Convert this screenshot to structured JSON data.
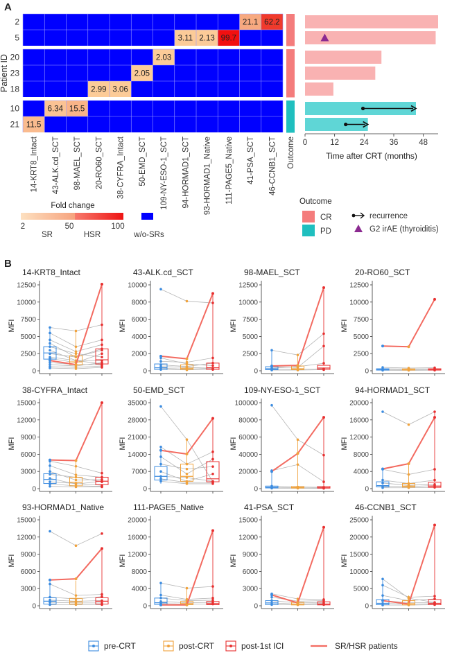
{
  "panel_labels": {
    "a": "A",
    "b": "B"
  },
  "heatmap": {
    "y_label": "Patient ID",
    "patients": [
      "2",
      "5",
      "20",
      "23",
      "18",
      "10",
      "21"
    ],
    "antigens": [
      "14-KRT8_Intact",
      "43-ALK.cd_SCT",
      "98-MAEL_SCT",
      "20-RO60_SCT",
      "38-CYFRA_Intact",
      "50-EMD_SCT",
      "109-NY-ESO-1_SCT",
      "94-HORMAD1_SCT",
      "93-HORMAD1_Native",
      "111-PAGE5_Native",
      "41-PSA_SCT",
      "46-CCNB1_SCT"
    ],
    "outcome_label": "Outcome",
    "cells": [
      {
        "patient": "2",
        "antigen": "41-PSA_SCT",
        "value": "21.1",
        "color": "#f7a980"
      },
      {
        "patient": "2",
        "antigen": "46-CCNB1_SCT",
        "value": "62.2",
        "color": "#f03a2c"
      },
      {
        "patient": "5",
        "antigen": "94-HORMAD1_SCT",
        "value": "3.11",
        "color": "#fccb98"
      },
      {
        "patient": "5",
        "antigen": "93-HORMAD1_Native",
        "value": "2.13",
        "color": "#fccb98"
      },
      {
        "patient": "5",
        "antigen": "111-PAGE5_Native",
        "value": "99.7",
        "color": "#f21010"
      },
      {
        "patient": "20",
        "antigen": "109-NY-ESO-1_SCT",
        "value": "2.03",
        "color": "#fccb98"
      },
      {
        "patient": "23",
        "antigen": "50-EMD_SCT",
        "value": "2.05",
        "color": "#fccb98"
      },
      {
        "patient": "18",
        "antigen": "20-RO60_SCT",
        "value": "2.99",
        "color": "#fccb98"
      },
      {
        "patient": "18",
        "antigen": "38-CYFRA_Intact",
        "value": "3.06",
        "color": "#fccb98"
      },
      {
        "patient": "10",
        "antigen": "43-ALK.cd_SCT",
        "value": "6.34",
        "color": "#fbc394"
      },
      {
        "patient": "10",
        "antigen": "98-MAEL_SCT",
        "value": "15.5",
        "color": "#f9b488"
      },
      {
        "patient": "21",
        "antigen": "14-KRT8_Intact",
        "value": "11.5",
        "color": "#fabb8e"
      }
    ],
    "outcomes": {
      "2": "CR",
      "5": "CR",
      "20": "CR",
      "23": "CR",
      "18": "CR",
      "10": "PD",
      "21": "PD"
    },
    "bars": {
      "x_label": "Time after CRT (months)",
      "ticks": [
        0,
        12,
        24,
        36,
        48
      ],
      "xlim": [
        0,
        54
      ],
      "months": {
        "2": 54,
        "5": 53,
        "20": 31,
        "23": 28.5,
        "18": 11.5,
        "10": 45,
        "21": 25.5
      },
      "recurrence": [
        {
          "patient": "10",
          "from": 23.5,
          "to": 45
        },
        {
          "patient": "21",
          "from": 16.5,
          "to": 25.5
        }
      ],
      "irae": [
        {
          "patient": "5",
          "month": 8
        }
      ]
    },
    "legend": {
      "fold_title": "Fold change",
      "fold_labels": [
        "2",
        "50",
        "100"
      ],
      "categories": [
        "SR",
        "HSR",
        "w/o-SRs"
      ],
      "outcome_title": "Outcome",
      "outcome_items": [
        "CR",
        "PD"
      ],
      "event_items": [
        "recurrence",
        "G2 irAE (thyroiditis)"
      ]
    }
  },
  "colors": {
    "blue": "#0000ff",
    "cr": "#f47c7c",
    "cr_bar": "#f9b2b2",
    "pd": "#1fbfbf",
    "pd_bar": "#5fd6d6",
    "pre": "#3c8ce0",
    "post": "#f0a23c",
    "ici": "#e83030",
    "highlight": "#f36a60",
    "gray": "#b5b5b5",
    "irae": "#8b2a90"
  },
  "chart_data": [
    {
      "type": "box+line",
      "title": "14-KRT8_Intact",
      "ylabel": "MFI",
      "ylim": [
        0,
        12500
      ],
      "yticks": [
        0,
        2500,
        5000,
        7500,
        10000,
        12500
      ],
      "timepoints": [
        "pre-CRT",
        "post-CRT",
        "post-1st ICI"
      ],
      "boxes": [
        [
          800,
          1700,
          2600,
          3500,
          6300
        ],
        [
          400,
          900,
          1300,
          2200,
          5800
        ],
        [
          500,
          1000,
          1600,
          3200,
          12600
        ]
      ],
      "highlight_series": [
        [
          1500,
          900,
          12600
        ]
      ],
      "gray_series": [
        [
          6300,
          5800,
          6700
        ],
        [
          5500,
          3500,
          4500
        ],
        [
          4500,
          2800,
          3800
        ],
        [
          4000,
          2000,
          3000
        ],
        [
          3500,
          2500,
          2000
        ],
        [
          3000,
          1500,
          1000
        ],
        [
          2500,
          2000,
          3200
        ],
        [
          2000,
          1500,
          1500
        ],
        [
          1800,
          1200,
          2500
        ],
        [
          1200,
          900,
          900
        ],
        [
          900,
          700,
          1200
        ],
        [
          600,
          500,
          700
        ],
        [
          400,
          300,
          500
        ]
      ]
    },
    {
      "type": "box+line",
      "title": "43-ALK.cd_SCT",
      "ylabel": "MFI",
      "ylim": [
        0,
        10000
      ],
      "yticks": [
        0,
        2000,
        4000,
        6000,
        8000,
        10000
      ],
      "timepoints": [
        "pre-CRT",
        "post-CRT",
        "post-1st ICI"
      ],
      "boxes": [
        [
          50,
          150,
          350,
          800,
          1700
        ],
        [
          50,
          150,
          300,
          700,
          1400
        ],
        [
          50,
          150,
          350,
          900,
          9000
        ]
      ],
      "highlight_series": [
        [
          1700,
          1400,
          9000
        ]
      ],
      "gray_series": [
        [
          9500,
          8100,
          7900
        ],
        [
          1500,
          800,
          600
        ],
        [
          1100,
          1000,
          1500
        ],
        [
          700,
          500,
          900
        ],
        [
          500,
          400,
          300
        ],
        [
          300,
          200,
          300
        ],
        [
          150,
          100,
          150
        ]
      ]
    },
    {
      "type": "box+line",
      "title": "98-MAEL_SCT",
      "ylabel": "MFI",
      "ylim": [
        0,
        12500
      ],
      "yticks": [
        0,
        2500,
        5000,
        7500,
        10000,
        12500
      ],
      "timepoints": [
        "pre-CRT",
        "post-CRT",
        "post-1st ICI"
      ],
      "boxes": [
        [
          50,
          150,
          300,
          600,
          3000
        ],
        [
          50,
          150,
          300,
          700,
          2400
        ],
        [
          50,
          200,
          400,
          800,
          12100
        ]
      ],
      "highlight_series": [
        [
          700,
          800,
          12100
        ]
      ],
      "gray_series": [
        [
          3000,
          2300,
          5400
        ],
        [
          600,
          500,
          3600
        ],
        [
          400,
          600,
          1100
        ],
        [
          250,
          200,
          300
        ],
        [
          100,
          100,
          150
        ]
      ]
    },
    {
      "type": "box+line",
      "title": "20-RO60_SCT",
      "ylabel": "MFI",
      "ylim": [
        0,
        12500
      ],
      "yticks": [
        0,
        2500,
        5000,
        7500,
        10000,
        12500
      ],
      "timepoints": [
        "pre-CRT",
        "post-CRT",
        "post-1st ICI"
      ],
      "boxes": [
        [
          30,
          100,
          180,
          300,
          500
        ],
        [
          30,
          100,
          160,
          280,
          450
        ],
        [
          30,
          100,
          170,
          300,
          500
        ]
      ],
      "highlight_series": [
        [
          3600,
          3500,
          10400
        ]
      ],
      "gray_series": [
        [
          500,
          400,
          450
        ],
        [
          300,
          280,
          300
        ],
        [
          150,
          150,
          160
        ],
        [
          80,
          70,
          90
        ]
      ]
    },
    {
      "type": "box+line",
      "title": "38-CYFRA_Intact",
      "ylabel": "MFI",
      "ylim": [
        0,
        15000
      ],
      "yticks": [
        0,
        3000,
        6000,
        9000,
        12000,
        15000
      ],
      "timepoints": [
        "pre-CRT",
        "post-CRT",
        "post-1st ICI"
      ],
      "boxes": [
        [
          200,
          900,
          1600,
          2600,
          5000
        ],
        [
          150,
          500,
          1100,
          2000,
          4800
        ],
        [
          200,
          700,
          1300,
          2000,
          15000
        ]
      ],
      "highlight_series": [
        [
          5000,
          4900,
          15000
        ]
      ],
      "gray_series": [
        [
          4800,
          3900,
          2700
        ],
        [
          4000,
          2400,
          2000
        ],
        [
          3000,
          1500,
          1600
        ],
        [
          2500,
          2000,
          1200
        ],
        [
          1800,
          800,
          1300
        ],
        [
          1200,
          900,
          600
        ],
        [
          800,
          500,
          400
        ],
        [
          400,
          300,
          300
        ]
      ]
    },
    {
      "type": "box+line",
      "title": "50-EMD_SCT",
      "ylabel": "MFI",
      "ylim": [
        0,
        35000
      ],
      "yticks": [
        0,
        7000,
        14000,
        21000,
        28000,
        35000
      ],
      "timepoints": [
        "pre-CRT",
        "post-CRT",
        "post-1st ICI"
      ],
      "boxes": [
        [
          2000,
          3500,
          5000,
          9000,
          17000
        ],
        [
          2000,
          3000,
          5000,
          10000,
          20000
        ],
        [
          2000,
          2800,
          4000,
          11000,
          29000
        ]
      ],
      "highlight_series": [
        [
          15600,
          14100,
          28600
        ]
      ],
      "gray_series": [
        [
          33500,
          20000,
          2800
        ],
        [
          17000,
          10000,
          15000
        ],
        [
          13000,
          6000,
          12000
        ],
        [
          10000,
          8000,
          9000
        ],
        [
          7000,
          3000,
          6000
        ],
        [
          5000,
          4500,
          3000
        ],
        [
          4000,
          2500,
          2500
        ],
        [
          3000,
          2000,
          2000
        ]
      ]
    },
    {
      "type": "box+line",
      "title": "109-NY-ESO-1_SCT",
      "ylabel": "MFI",
      "ylim": [
        0,
        100000
      ],
      "yticks": [
        0,
        20000,
        40000,
        60000,
        80000,
        100000
      ],
      "timepoints": [
        "pre-CRT",
        "post-CRT",
        "post-1st ICI"
      ],
      "boxes": [
        [
          200,
          800,
          1500,
          3000,
          21000
        ],
        [
          200,
          700,
          1200,
          2500,
          57000
        ],
        [
          200,
          600,
          1000,
          2500,
          83000
        ]
      ],
      "highlight_series": [
        [
          20000,
          41000,
          83000
        ]
      ],
      "gray_series": [
        [
          97000,
          57000,
          39000
        ],
        [
          21000,
          28000,
          8000
        ],
        [
          3000,
          2000,
          1500
        ],
        [
          1500,
          1000,
          800
        ],
        [
          500,
          400,
          300
        ]
      ]
    },
    {
      "type": "box+line",
      "title": "94-HORMAD1_SCT",
      "ylabel": "MFI",
      "ylim": [
        0,
        20000
      ],
      "yticks": [
        0,
        4000,
        8000,
        12000,
        16000,
        20000
      ],
      "timepoints": [
        "pre-CRT",
        "post-CRT",
        "post-1st ICI"
      ],
      "boxes": [
        [
          100,
          400,
          700,
          1600,
          4500
        ],
        [
          100,
          350,
          600,
          1200,
          5700
        ],
        [
          100,
          300,
          600,
          1500,
          17900
        ]
      ],
      "highlight_series": [
        [
          4600,
          5800,
          16600
        ]
      ],
      "gray_series": [
        [
          17900,
          14900,
          17900
        ],
        [
          4500,
          3300,
          4500
        ],
        [
          2000,
          1200,
          2000
        ],
        [
          1300,
          800,
          1000
        ],
        [
          600,
          500,
          700
        ],
        [
          200,
          200,
          300
        ]
      ]
    },
    {
      "type": "box+line",
      "title": "93-HORMAD1_Native",
      "ylabel": "MFI",
      "ylim": [
        0,
        15000
      ],
      "yticks": [
        0,
        3000,
        6000,
        9000,
        12000,
        15000
      ],
      "timepoints": [
        "pre-CRT",
        "post-CRT",
        "post-1st ICI"
      ],
      "boxes": [
        [
          100,
          300,
          800,
          1400,
          4200
        ],
        [
          100,
          300,
          700,
          1300,
          4400
        ],
        [
          100,
          300,
          800,
          1400,
          10000
        ]
      ],
      "highlight_series": [
        [
          4500,
          4700,
          10000
        ]
      ],
      "gray_series": [
        [
          13000,
          10500,
          12600
        ],
        [
          3800,
          1800,
          2000
        ],
        [
          1500,
          1200,
          1600
        ],
        [
          1000,
          800,
          900
        ],
        [
          600,
          500,
          500
        ],
        [
          200,
          200,
          200
        ]
      ]
    },
    {
      "type": "box+line",
      "title": "111-PAGE5_Native",
      "ylabel": "MFI",
      "ylim": [
        0,
        20000
      ],
      "yticks": [
        0,
        4000,
        8000,
        12000,
        16000,
        20000
      ],
      "timepoints": [
        "pre-CRT",
        "post-CRT",
        "post-1st ICI"
      ],
      "boxes": [
        [
          100,
          300,
          700,
          1800,
          5300
        ],
        [
          100,
          250,
          500,
          1000,
          4100
        ],
        [
          100,
          250,
          500,
          1000,
          17500
        ]
      ],
      "highlight_series": [
        [
          200,
          200,
          17500
        ]
      ],
      "gray_series": [
        [
          5300,
          4100,
          4500
        ],
        [
          2500,
          1500,
          1800
        ],
        [
          1800,
          1200,
          1300
        ],
        [
          1000,
          700,
          800
        ],
        [
          500,
          400,
          400
        ]
      ]
    },
    {
      "type": "box+line",
      "title": "41-PSA_SCT",
      "ylabel": "MFI",
      "ylim": [
        0,
        15000
      ],
      "yticks": [
        0,
        3000,
        6000,
        9000,
        12000,
        15000
      ],
      "timepoints": [
        "pre-CRT",
        "post-CRT",
        "post-1st ICI"
      ],
      "boxes": [
        [
          50,
          200,
          500,
          900,
          2100
        ],
        [
          50,
          150,
          300,
          600,
          1200
        ],
        [
          50,
          150,
          300,
          700,
          13700
        ]
      ],
      "highlight_series": [
        [
          1900,
          500,
          13700
        ]
      ],
      "gray_series": [
        [
          2100,
          1200,
          1100
        ],
        [
          1500,
          800,
          900
        ],
        [
          900,
          500,
          600
        ],
        [
          500,
          300,
          400
        ],
        [
          200,
          150,
          200
        ]
      ]
    },
    {
      "type": "box+line",
      "title": "46-CCNB1_SCT",
      "ylabel": "MFI",
      "ylim": [
        0,
        25000
      ],
      "yticks": [
        0,
        5000,
        10000,
        15000,
        20000,
        25000
      ],
      "timepoints": [
        "pre-CRT",
        "post-CRT",
        "post-1st ICI"
      ],
      "boxes": [
        [
          100,
          300,
          700,
          1800,
          7800
        ],
        [
          100,
          250,
          600,
          1500,
          3000
        ],
        [
          100,
          300,
          700,
          1800,
          23500
        ]
      ],
      "highlight_series": [
        [
          1500,
          500,
          23500
        ]
      ],
      "gray_series": [
        [
          7800,
          2200,
          1000
        ],
        [
          6000,
          2500,
          2800
        ],
        [
          3000,
          1500,
          2000
        ],
        [
          1500,
          900,
          900
        ],
        [
          700,
          500,
          600
        ],
        [
          200,
          200,
          300
        ]
      ]
    }
  ],
  "bottom_legend": {
    "items": [
      "pre-CRT",
      "post-CRT",
      "post-1st ICI"
    ],
    "line_label": "SR/HSR patients"
  }
}
